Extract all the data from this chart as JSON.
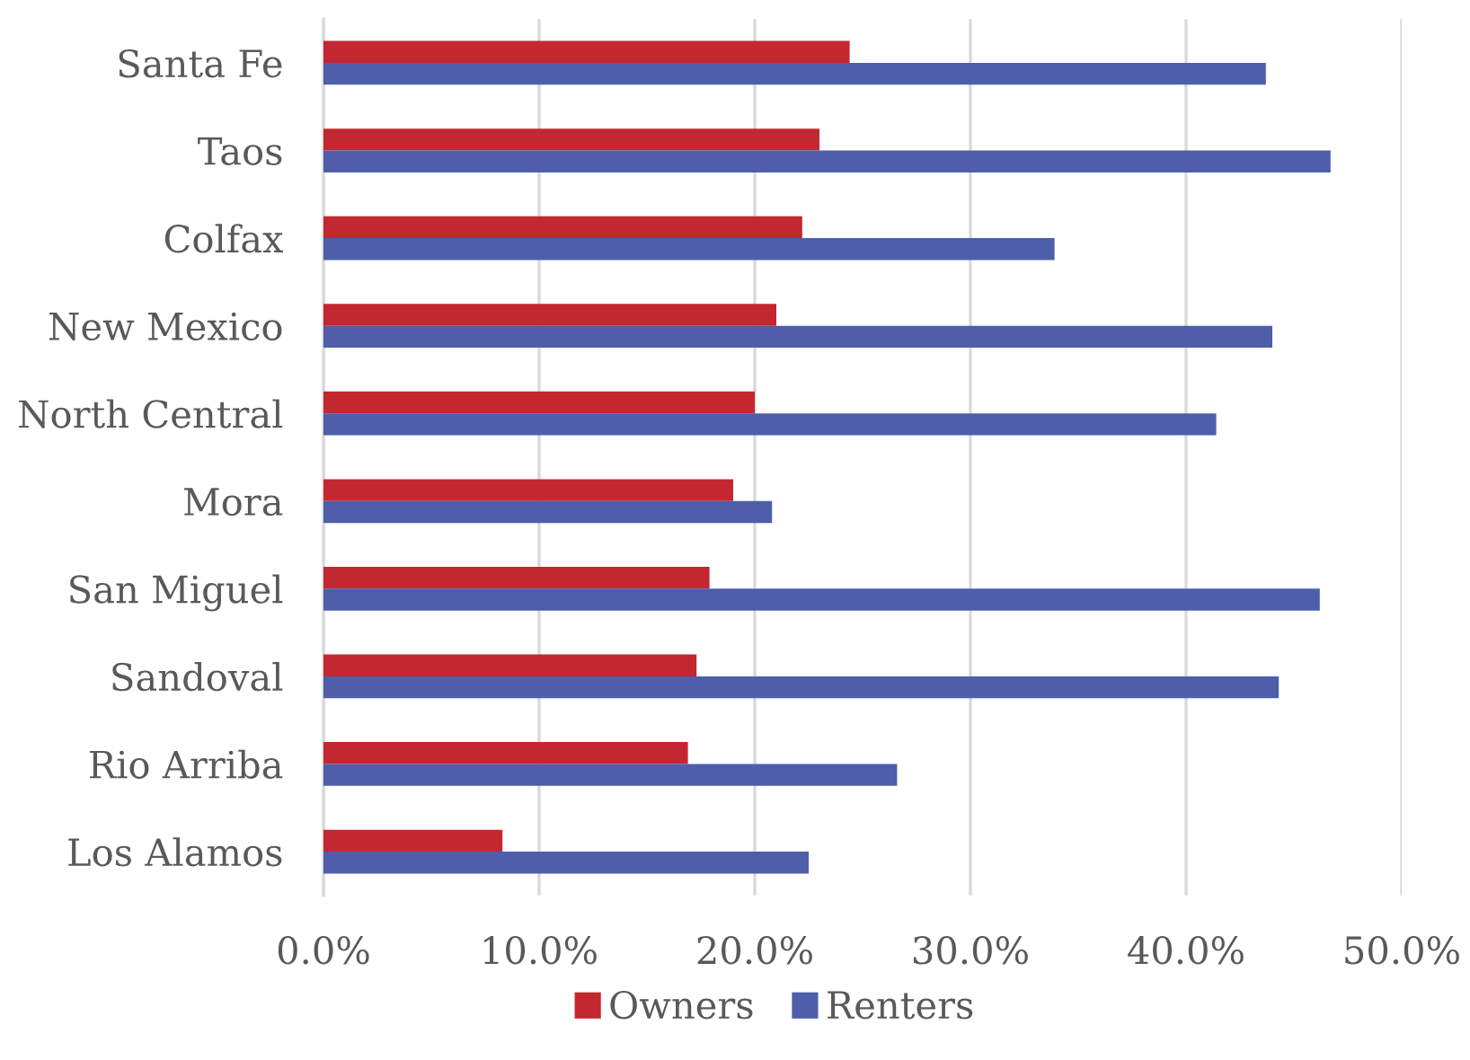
{
  "chart_data": {
    "type": "bar",
    "orientation": "horizontal",
    "categories": [
      "Santa Fe",
      "Taos",
      "Colfax",
      "New Mexico",
      "North Central",
      "Mora",
      "San Miguel",
      "Sandoval",
      "Rio Arriba",
      "Los Alamos"
    ],
    "series": [
      {
        "name": "Owners",
        "color": "#c3272f",
        "values": [
          24.4,
          23.0,
          22.2,
          21.0,
          20.0,
          19.0,
          17.9,
          17.3,
          16.9,
          8.3
        ]
      },
      {
        "name": "Renters",
        "color": "#4e5eab",
        "values": [
          43.7,
          46.7,
          33.9,
          44.0,
          41.4,
          20.8,
          46.2,
          44.3,
          26.6,
          22.5
        ]
      }
    ],
    "xlim": [
      0,
      50
    ],
    "xticks": [
      {
        "value": 0,
        "label": "0.0%"
      },
      {
        "value": 10,
        "label": "10.0%"
      },
      {
        "value": 20,
        "label": "20.0%"
      },
      {
        "value": 30,
        "label": "30.0%"
      },
      {
        "value": 40,
        "label": "40.0%"
      },
      {
        "value": 50,
        "label": "50.0%"
      }
    ],
    "grid": "x",
    "legend": "bottom"
  }
}
